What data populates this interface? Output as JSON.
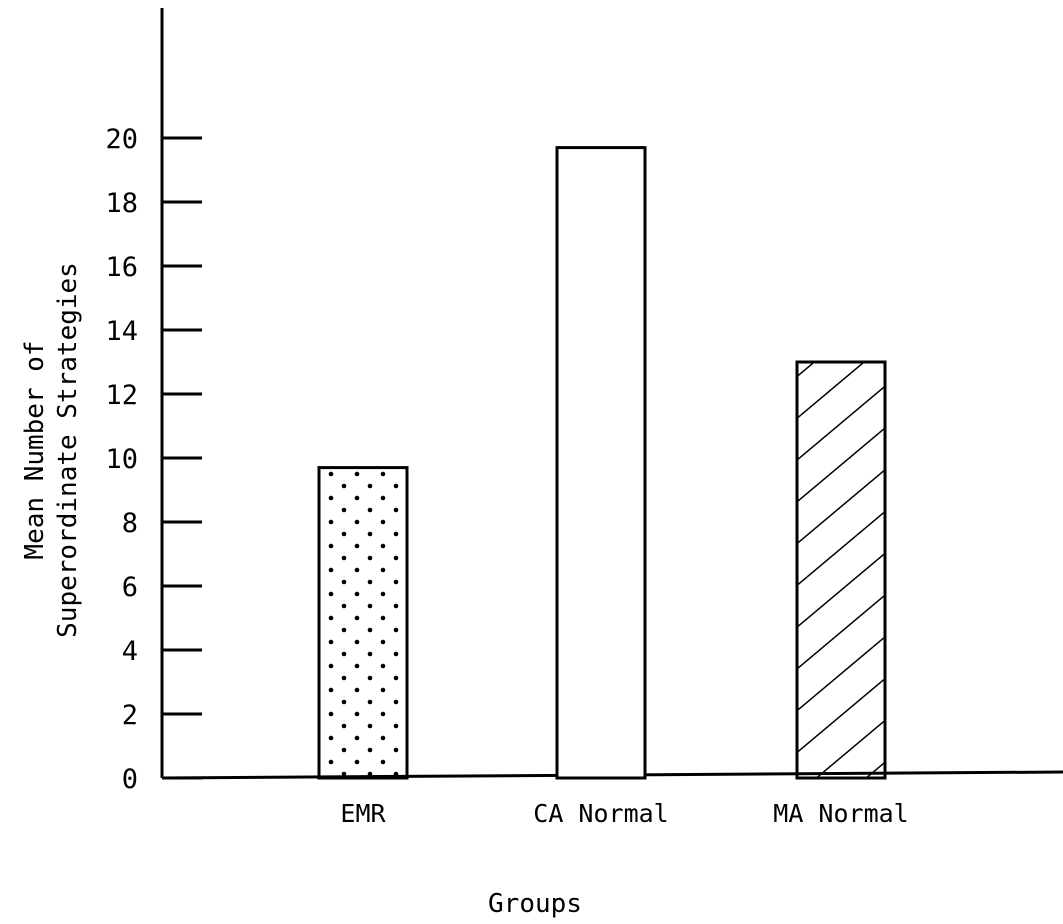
{
  "chart_data": {
    "type": "bar",
    "categories": [
      "EMR",
      "CA Normal",
      "MA Normal"
    ],
    "values": [
      9.7,
      19.7,
      13.0
    ],
    "patterns": [
      "dots",
      "none",
      "diagonal-hatch"
    ],
    "title": "",
    "xlabel": "Groups",
    "ylabel_lines": [
      "Mean Number of",
      "Superordinate Strategies"
    ],
    "ylim": [
      0,
      20
    ],
    "yticks": [
      0,
      2,
      4,
      6,
      8,
      10,
      12,
      14,
      16,
      18,
      20
    ],
    "grid": false,
    "legend": "none"
  }
}
